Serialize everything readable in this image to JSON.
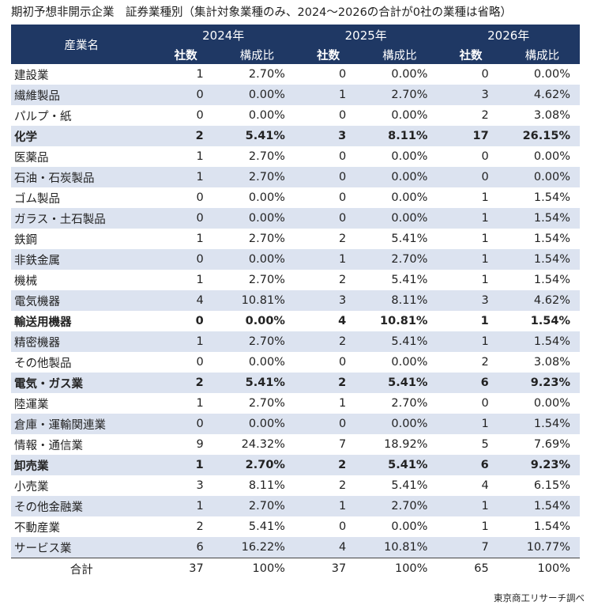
{
  "title": "期初予想非開示企業　証券業種別（集計対象業種のみ、2024～2026の合計が0社の業種は省略）",
  "source": "東京商工リサーチ調べ",
  "chart_data": {
    "type": "table",
    "header": {
      "industry": "産業名",
      "years": [
        "2024年",
        "2025年",
        "2026年"
      ],
      "count_label": "社数",
      "ratio_label": "構成比"
    },
    "rows": [
      {
        "industry": "建設業",
        "bold": false,
        "cells": [
          "1",
          "2.70%",
          "0",
          "0.00%",
          "0",
          "0.00%"
        ]
      },
      {
        "industry": "繊維製品",
        "bold": false,
        "cells": [
          "0",
          "0.00%",
          "1",
          "2.70%",
          "3",
          "4.62%"
        ]
      },
      {
        "industry": "パルプ・紙",
        "bold": false,
        "cells": [
          "0",
          "0.00%",
          "0",
          "0.00%",
          "2",
          "3.08%"
        ]
      },
      {
        "industry": "化学",
        "bold": true,
        "cells": [
          "2",
          "5.41%",
          "3",
          "8.11%",
          "17",
          "26.15%"
        ]
      },
      {
        "industry": "医薬品",
        "bold": false,
        "cells": [
          "1",
          "2.70%",
          "0",
          "0.00%",
          "0",
          "0.00%"
        ]
      },
      {
        "industry": "石油・石炭製品",
        "bold": false,
        "cells": [
          "1",
          "2.70%",
          "0",
          "0.00%",
          "0",
          "0.00%"
        ]
      },
      {
        "industry": "ゴム製品",
        "bold": false,
        "cells": [
          "0",
          "0.00%",
          "0",
          "0.00%",
          "1",
          "1.54%"
        ]
      },
      {
        "industry": "ガラス・土石製品",
        "bold": false,
        "cells": [
          "0",
          "0.00%",
          "0",
          "0.00%",
          "1",
          "1.54%"
        ]
      },
      {
        "industry": "鉄鋼",
        "bold": false,
        "cells": [
          "1",
          "2.70%",
          "2",
          "5.41%",
          "1",
          "1.54%"
        ]
      },
      {
        "industry": "非鉄金属",
        "bold": false,
        "cells": [
          "0",
          "0.00%",
          "1",
          "2.70%",
          "1",
          "1.54%"
        ]
      },
      {
        "industry": "機械",
        "bold": false,
        "cells": [
          "1",
          "2.70%",
          "2",
          "5.41%",
          "1",
          "1.54%"
        ]
      },
      {
        "industry": "電気機器",
        "bold": false,
        "cells": [
          "4",
          "10.81%",
          "3",
          "8.11%",
          "3",
          "4.62%"
        ]
      },
      {
        "industry": "輸送用機器",
        "bold": true,
        "cells": [
          "0",
          "0.00%",
          "4",
          "10.81%",
          "1",
          "1.54%"
        ]
      },
      {
        "industry": "精密機器",
        "bold": false,
        "cells": [
          "1",
          "2.70%",
          "2",
          "5.41%",
          "1",
          "1.54%"
        ]
      },
      {
        "industry": "その他製品",
        "bold": false,
        "cells": [
          "0",
          "0.00%",
          "0",
          "0.00%",
          "2",
          "3.08%"
        ]
      },
      {
        "industry": "電気・ガス業",
        "bold": true,
        "cells": [
          "2",
          "5.41%",
          "2",
          "5.41%",
          "6",
          "9.23%"
        ]
      },
      {
        "industry": "陸運業",
        "bold": false,
        "cells": [
          "1",
          "2.70%",
          "1",
          "2.70%",
          "0",
          "0.00%"
        ]
      },
      {
        "industry": "倉庫・運輸関連業",
        "bold": false,
        "cells": [
          "0",
          "0.00%",
          "0",
          "0.00%",
          "1",
          "1.54%"
        ]
      },
      {
        "industry": "情報・通信業",
        "bold": false,
        "cells": [
          "9",
          "24.32%",
          "7",
          "18.92%",
          "5",
          "7.69%"
        ]
      },
      {
        "industry": "卸売業",
        "bold": true,
        "cells": [
          "1",
          "2.70%",
          "2",
          "5.41%",
          "6",
          "9.23%"
        ]
      },
      {
        "industry": "小売業",
        "bold": false,
        "cells": [
          "3",
          "8.11%",
          "2",
          "5.41%",
          "4",
          "6.15%"
        ]
      },
      {
        "industry": "その他金融業",
        "bold": false,
        "cells": [
          "1",
          "2.70%",
          "1",
          "2.70%",
          "1",
          "1.54%"
        ]
      },
      {
        "industry": "不動産業",
        "bold": false,
        "cells": [
          "2",
          "5.41%",
          "0",
          "0.00%",
          "1",
          "1.54%"
        ]
      },
      {
        "industry": "サービス業",
        "bold": false,
        "cells": [
          "6",
          "16.22%",
          "4",
          "10.81%",
          "7",
          "10.77%"
        ]
      }
    ],
    "total": {
      "label": "合計",
      "cells": [
        "37",
        "100%",
        "37",
        "100%",
        "65",
        "100%"
      ]
    }
  },
  "colors": {
    "header_bg": "#1f3864",
    "header_text": "#ffffff",
    "stripe": "#dce3f0"
  }
}
